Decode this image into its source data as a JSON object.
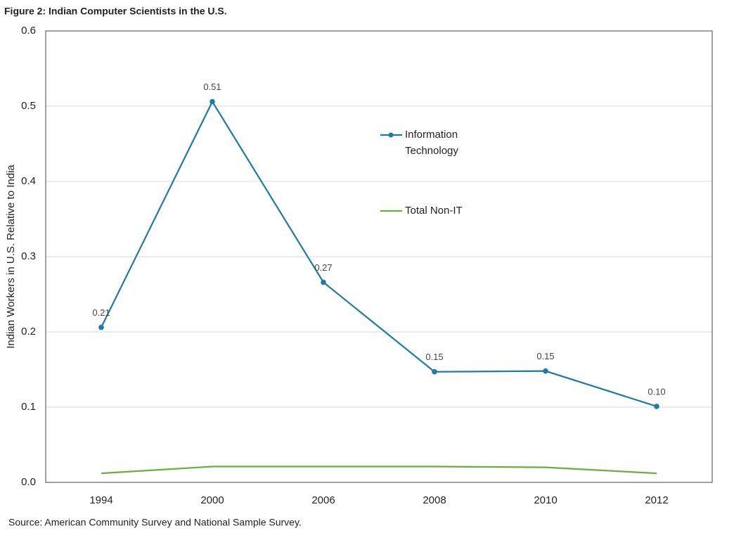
{
  "chart_data": {
    "type": "line",
    "title": "Figure 2: Indian Computer Scientists in the U.S.",
    "y_label": "Indian Workers  in U.S. Relative to India",
    "source": "Source: American Community Survey and National Sample Survey.",
    "categories": [
      "1994",
      "2000",
      "2006",
      "2008",
      "2010",
      "2012"
    ],
    "series": [
      {
        "name": "Information Technology",
        "color": "#1f7ba6",
        "markers": true,
        "values": [
          0.206,
          0.506,
          0.266,
          0.147,
          0.148,
          0.101
        ],
        "value_labels": [
          "0.21",
          "0.51",
          "0.27",
          "0.15",
          "0.15",
          "0.10"
        ]
      },
      {
        "name": "Total Non-IT",
        "color": "#6aaf3a",
        "markers": false,
        "values": [
          0.012,
          0.021,
          0.021,
          0.021,
          0.02,
          0.012
        ]
      }
    ],
    "ylim": [
      0,
      0.6
    ],
    "yticks": [
      {
        "value": 0,
        "label": "0.0"
      },
      0.1,
      0.2,
      0.3,
      0.4,
      0.5,
      0.6
    ],
    "grid": true
  }
}
